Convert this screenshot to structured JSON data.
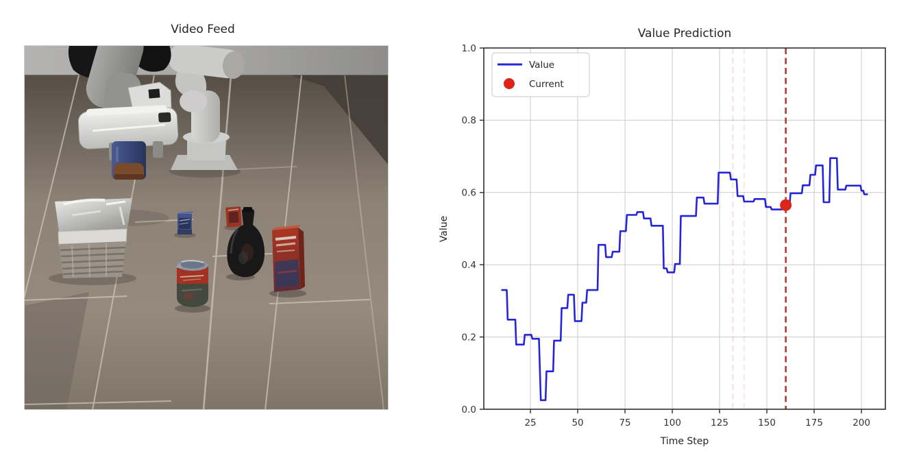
{
  "video_feed": {
    "title": "Video Feed",
    "scene": {
      "setting": "robot manipulation simulation on wooden plank floor",
      "objects": [
        "gray-robot-arm-with-white-gripper-holding-blue-can",
        "white-robot-arm-on-pedestal",
        "wicker-basket-with-silver-liner",
        "blue-box",
        "red-soup-can",
        "black-bottle",
        "small-red-box",
        "large-red-box"
      ]
    }
  },
  "chart_data": {
    "type": "line",
    "title": "Value Prediction",
    "xlabel": "Time Step",
    "ylabel": "Value",
    "xlim": [
      0.35,
      212.65
    ],
    "ylim": [
      0,
      1
    ],
    "xticks": [
      25,
      50,
      75,
      100,
      125,
      150,
      175,
      200
    ],
    "yticks": [
      0,
      0.2,
      0.4,
      0.6,
      0.8,
      1.0
    ],
    "grid": true,
    "grid_color": "#cccbca",
    "legend_position": "upper-left",
    "legend": [
      {
        "label": "Value",
        "marker": "line",
        "color": "#2424d8"
      },
      {
        "label": "Current",
        "marker": "dot",
        "color": "#dc2418"
      }
    ],
    "series": [
      {
        "name": "Value",
        "color": "#2424d8",
        "points": [
          [
            10,
            0.33
          ],
          [
            12.5,
            0.33
          ],
          [
            13,
            0.248
          ],
          [
            17,
            0.248
          ],
          [
            17.5,
            0.179
          ],
          [
            21.5,
            0.179
          ],
          [
            22,
            0.206
          ],
          [
            25.5,
            0.206
          ],
          [
            26,
            0.195
          ],
          [
            29.5,
            0.195
          ],
          [
            30.5,
            0.025
          ],
          [
            33,
            0.025
          ],
          [
            33.5,
            0.105
          ],
          [
            37,
            0.105
          ],
          [
            37.5,
            0.19
          ],
          [
            41,
            0.19
          ],
          [
            41.5,
            0.28
          ],
          [
            44.5,
            0.28
          ],
          [
            45,
            0.317
          ],
          [
            48,
            0.317
          ],
          [
            48.5,
            0.244
          ],
          [
            52,
            0.244
          ],
          [
            52.5,
            0.295
          ],
          [
            54.5,
            0.295
          ],
          [
            55,
            0.33
          ],
          [
            60.5,
            0.33
          ],
          [
            61,
            0.455
          ],
          [
            64.5,
            0.455
          ],
          [
            65,
            0.421
          ],
          [
            68,
            0.421
          ],
          [
            68.5,
            0.436
          ],
          [
            72,
            0.436
          ],
          [
            72.5,
            0.493
          ],
          [
            75.5,
            0.493
          ],
          [
            76,
            0.538
          ],
          [
            81,
            0.538
          ],
          [
            81.5,
            0.546
          ],
          [
            84.5,
            0.546
          ],
          [
            85,
            0.528
          ],
          [
            88.5,
            0.528
          ],
          [
            89,
            0.508
          ],
          [
            95,
            0.508
          ],
          [
            95.5,
            0.39
          ],
          [
            97,
            0.39
          ],
          [
            97.5,
            0.379
          ],
          [
            101,
            0.379
          ],
          [
            101.5,
            0.402
          ],
          [
            104,
            0.402
          ],
          [
            104.5,
            0.535
          ],
          [
            112.5,
            0.535
          ],
          [
            113,
            0.586
          ],
          [
            116.5,
            0.586
          ],
          [
            117,
            0.569
          ],
          [
            124,
            0.569
          ],
          [
            124.5,
            0.655
          ],
          [
            130.5,
            0.655
          ],
          [
            131,
            0.636
          ],
          [
            134,
            0.636
          ],
          [
            134.5,
            0.59
          ],
          [
            137.5,
            0.59
          ],
          [
            138,
            0.575
          ],
          [
            143,
            0.575
          ],
          [
            143.5,
            0.582
          ],
          [
            149,
            0.582
          ],
          [
            149.5,
            0.56
          ],
          [
            152,
            0.56
          ],
          [
            152.5,
            0.553
          ],
          [
            158,
            0.553
          ],
          [
            158.5,
            0.565
          ],
          [
            162,
            0.565
          ],
          [
            162.5,
            0.598
          ],
          [
            168.5,
            0.598
          ],
          [
            169,
            0.62
          ],
          [
            172.5,
            0.62
          ],
          [
            173,
            0.649
          ],
          [
            175.5,
            0.649
          ],
          [
            176,
            0.675
          ],
          [
            179.5,
            0.675
          ],
          [
            180,
            0.573
          ],
          [
            183,
            0.573
          ],
          [
            183.5,
            0.695
          ],
          [
            187,
            0.695
          ],
          [
            187.5,
            0.608
          ],
          [
            191.5,
            0.608
          ],
          [
            192,
            0.619
          ],
          [
            199.5,
            0.619
          ],
          [
            200,
            0.605
          ],
          [
            201,
            0.605
          ],
          [
            201.5,
            0.595
          ],
          [
            203,
            0.595
          ]
        ]
      }
    ],
    "current_marker": {
      "label": "Current",
      "x": 160,
      "y": 0.565,
      "color": "#dc2418",
      "radius": 8.5
    },
    "current_vline": {
      "x": 160,
      "color": "#b23a31",
      "style": "dashed"
    },
    "ghost_vlines": [
      {
        "x": 132,
        "opacity": 0.12
      },
      {
        "x": 138,
        "opacity": 0.09
      }
    ]
  }
}
